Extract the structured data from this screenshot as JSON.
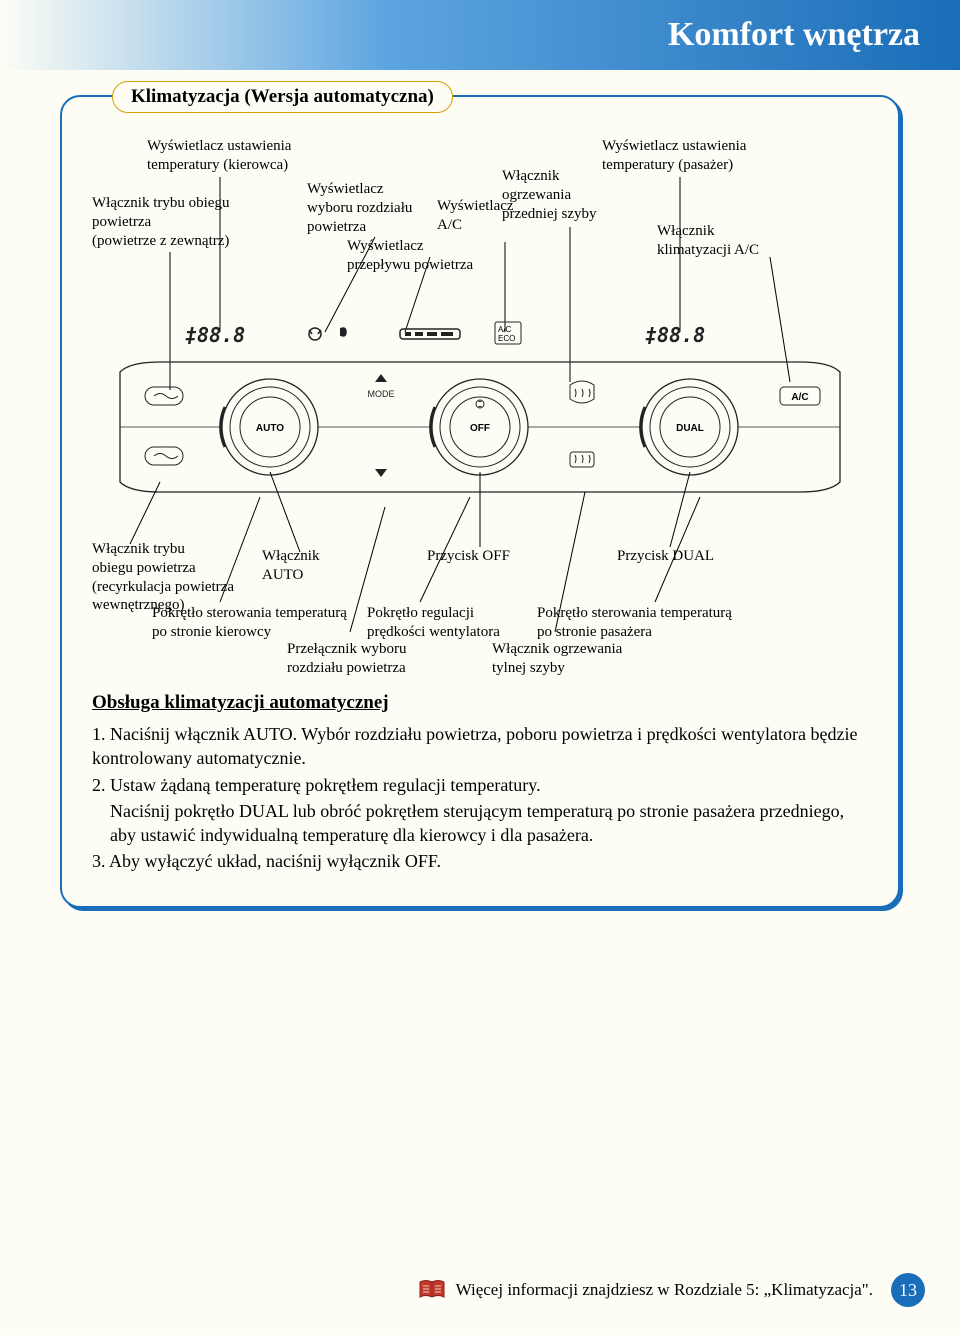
{
  "header": {
    "title": "Komfort wnętrza"
  },
  "section": {
    "pill": "Klimatyzacja (Wersja automatyczna)"
  },
  "top_labels": {
    "driver_temp": "Wyświetlacz ustawienia\ntemperatury (kierowca)",
    "circ_mode_ext": "Włącznik trybu obiegu\npowietrza\n(powietrze z zewnątrz)",
    "air_dist_sel": "Wyświetlacz\nwyboru rozdziału\npowietrza",
    "airflow_disp": "Wyświetlacz\nprzepływu powietrza",
    "ac_disp": "Wyświetlacz\nA/C",
    "front_heat_sw": "Włącznik\nogrzewania\nprzedniej szyby",
    "pass_temp": "Wyświetlacz ustawienia\ntemperatury (pasażer)",
    "ac_switch": "Włącznik\nklimatyzacji A/C"
  },
  "panel": {
    "seg_left": "88.8",
    "seg_right": "88.8",
    "aceco": "A/C\nECO",
    "mode": "MODE",
    "auto": "AUTO",
    "off": "OFF",
    "dual": "DUAL",
    "ac": "A/C"
  },
  "bottom_labels": {
    "circ_mode_int": "Włącznik trybu\nobiegu powietrza\n(recyrkulacja powietrza\nwewnętrznego)",
    "auto_sw": "Włącznik\nAUTO",
    "driver_knob": "Pokrętło sterowania temperaturą\npo stronie kierowcy",
    "dist_selector": "Przełącznik wyboru\nrozdziału powietrza",
    "off_btn": "Przycisk OFF",
    "fan_knob": "Pokrętło regulacji\nprędkości wentylatora",
    "rear_heat": "Włącznik ogrzewania\ntylnej szyby",
    "dual_btn": "Przycisk DUAL",
    "pass_knob": "Pokrętło sterowania temperaturą\npo stronie pasażera"
  },
  "instructions": {
    "heading": "Obsługa klimatyzacji automatycznej",
    "item1": "1. Naciśnij włącznik AUTO. Wybór rozdziału powietrza, poboru powietrza i prędkości wentylatora będzie kontrolowany automatycznie.",
    "item2a": "2. Ustaw żądaną temperaturę pokrętłem regulacji temperatury.",
    "item2b": "Naciśnij pokrętło DUAL lub obróć pokrętłem sterującym temperaturą po stronie pasażera przedniego, aby ustawić indywidualną temperaturę dla kierowcy i dla pasażera.",
    "item3": "3. Aby wyłączyć układ, naciśnij wyłącznik OFF."
  },
  "footer": {
    "text": "Więcej informacji znajdziesz w Rozdziale 5: „Klimatyzacja\".",
    "page": "13"
  },
  "colors": {
    "accent": "#1a6db8",
    "pill_border": "#d4a000",
    "bg": "#fdfdf5"
  }
}
